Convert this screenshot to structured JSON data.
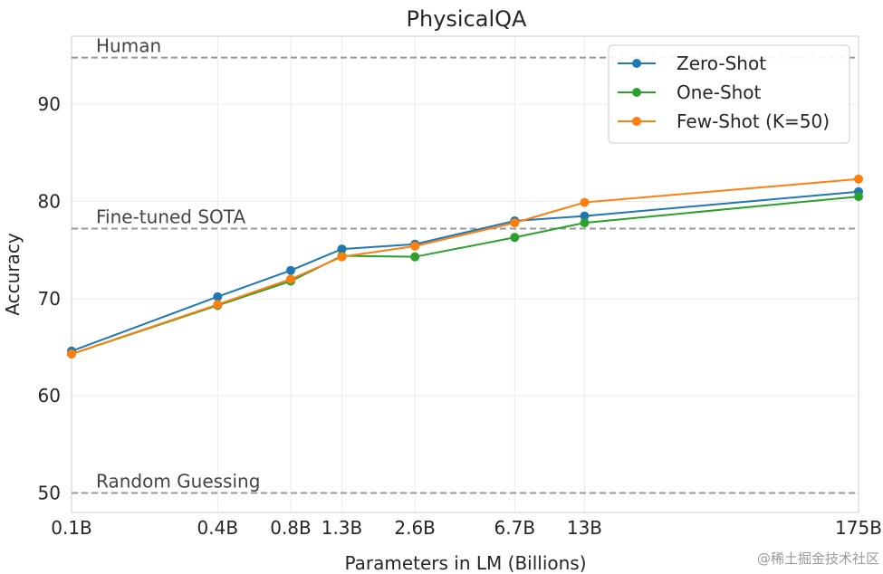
{
  "chart_data": {
    "type": "line",
    "title": "PhysicalQA",
    "xlabel": "Parameters in LM (Billions)",
    "ylabel": "Accuracy",
    "categories": [
      "0.1B",
      "0.4B",
      "0.8B",
      "1.3B",
      "2.6B",
      "6.7B",
      "13B",
      "175B"
    ],
    "x": [
      0.1,
      0.4,
      0.8,
      1.3,
      2.6,
      6.7,
      13,
      175
    ],
    "xscale": "log",
    "ylim": [
      48,
      97
    ],
    "yticks": [
      50,
      60,
      70,
      80,
      90
    ],
    "grid": true,
    "legend_position": "top-right",
    "series": [
      {
        "name": "Zero-Shot",
        "color": "#1f77b4",
        "values": [
          64.6,
          70.2,
          72.9,
          75.1,
          75.6,
          78.0,
          78.5,
          81.0
        ]
      },
      {
        "name": "One-Shot",
        "color": "#2ca02c",
        "values": [
          64.3,
          69.3,
          71.8,
          74.4,
          74.3,
          76.3,
          77.8,
          80.5
        ]
      },
      {
        "name": "Few-Shot (K=50)",
        "color": "#ff7f0e",
        "values": [
          64.3,
          69.4,
          72.0,
          74.3,
          75.4,
          77.8,
          79.9,
          82.3
        ]
      }
    ],
    "reference_lines": [
      {
        "label": "Human",
        "value": 94.8,
        "color": "#999999"
      },
      {
        "label": "Fine-tuned SOTA",
        "value": 77.2,
        "color": "#999999"
      },
      {
        "label": "Random Guessing",
        "value": 50.0,
        "color": "#999999"
      }
    ]
  },
  "watermark": "@稀土掘金技术社区"
}
